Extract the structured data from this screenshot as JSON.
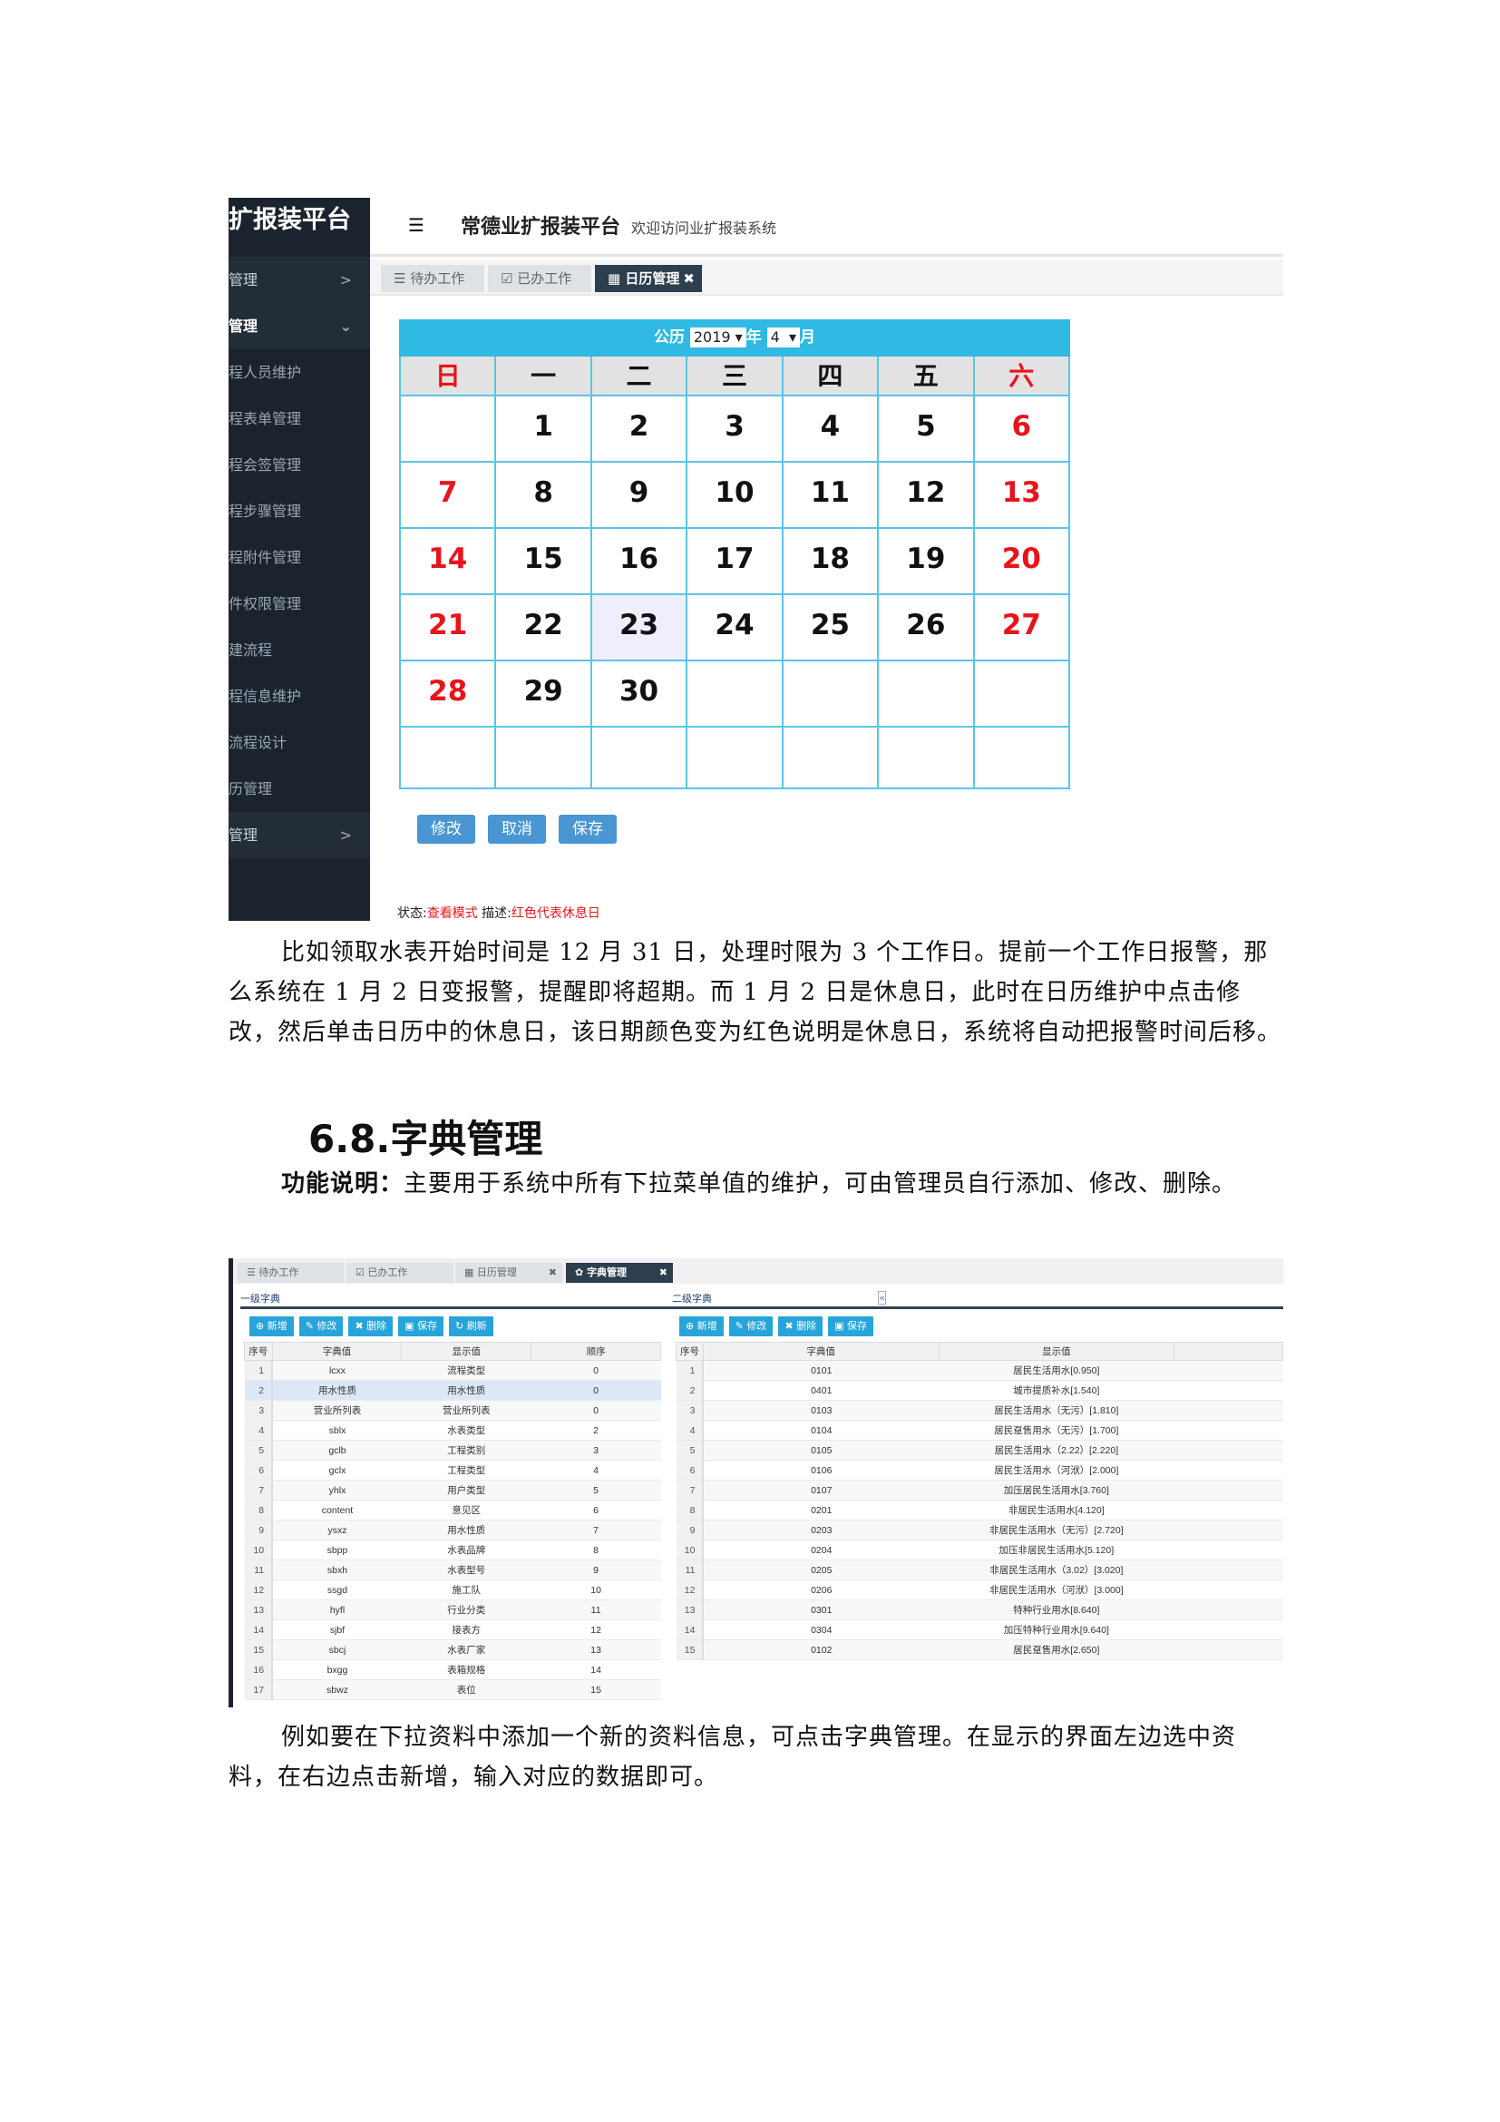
{
  "screenshot1": {
    "sidebar": {
      "title": "扩报装平台",
      "items": [
        {
          "label": "管理",
          "type": "group",
          "chevron": ">"
        },
        {
          "label": "管理",
          "type": "group active",
          "chevron": "⌄"
        },
        {
          "label": "程人员维护"
        },
        {
          "label": "程表单管理"
        },
        {
          "label": "程会签管理"
        },
        {
          "label": "程步骤管理"
        },
        {
          "label": "程附件管理"
        },
        {
          "label": "件权限管理"
        },
        {
          "label": "建流程"
        },
        {
          "label": "程信息维护"
        },
        {
          "label": "流程设计"
        },
        {
          "label": "历管理"
        },
        {
          "label": "管理",
          "type": "group",
          "chevron": ">"
        }
      ]
    },
    "header": {
      "menu_icon": "☰",
      "title": "常德业扩报装平台",
      "subtitle": "欢迎访问业扩报装系统"
    },
    "tabs": [
      {
        "icon": "☰",
        "label": "待办工作"
      },
      {
        "icon": "☑",
        "label": "已办工作"
      },
      {
        "icon": "▦",
        "label": "日历管理",
        "active": true,
        "close": "✖"
      }
    ],
    "calendar": {
      "label_calendar": "公历",
      "year": "2019",
      "year_suffix": "年",
      "month": "4",
      "month_suffix": "月",
      "weekdays": [
        "日",
        "一",
        "二",
        "三",
        "四",
        "五",
        "六"
      ],
      "weeks": [
        [
          "",
          "1",
          "2",
          "3",
          "4",
          "5",
          "6"
        ],
        [
          "7",
          "8",
          "9",
          "10",
          "11",
          "12",
          "13"
        ],
        [
          "14",
          "15",
          "16",
          "17",
          "18",
          "19",
          "20"
        ],
        [
          "21",
          "22",
          "23",
          "24",
          "25",
          "26",
          "27"
        ],
        [
          "28",
          "29",
          "30",
          "",
          "",
          "",
          ""
        ],
        [
          "",
          "",
          "",
          "",
          "",
          "",
          ""
        ]
      ],
      "selected_day": "23",
      "holiday_color": "#e8141b"
    },
    "buttons": [
      "修改",
      "取消",
      "保存"
    ],
    "status": {
      "label": "状态:",
      "value": "查看模式",
      "desc_label": "描述:",
      "desc_value": "红色代表休息日"
    }
  },
  "para1": "比如领取水表开始时间是 12 月 31 日，处理时限为 3 个工作日。提前一个工作日报警，那么系统在 1 月 2 日变报警，提醒即将超期。而 1 月 2 日是休息日，此时在日历维护中点击修改，然后单击日历中的休息日，该日期颜色变为红色说明是休息日，系统将自动把报警时间后移。",
  "heading": "6.8.字典管理",
  "para2_bold": "功能说明：",
  "para2": "主要用于系统中所有下拉菜单值的维护，可由管理员自行添加、修改、删除。",
  "screenshot2": {
    "tabs": [
      {
        "icon": "☰",
        "label": "待办工作"
      },
      {
        "icon": "☑",
        "label": "已办工作"
      },
      {
        "icon": "▦",
        "label": "日历管理",
        "close": "✖"
      },
      {
        "icon": "✿",
        "label": "字典管理",
        "active": true,
        "close": "✖"
      }
    ],
    "left": {
      "title": "一级字典",
      "collapse": "«",
      "toolbar": [
        "⊕ 新增",
        "✎ 修改",
        "✖ 删除",
        "▣ 保存",
        "↻ 刷新"
      ],
      "columns": [
        "序号",
        "字典值",
        "显示值",
        "顺序"
      ],
      "rows": [
        [
          "1",
          "lcxx",
          "流程类型",
          "0"
        ],
        [
          "2",
          "用水性质",
          "用水性质",
          "0"
        ],
        [
          "3",
          "营业所列表",
          "营业所列表",
          "0"
        ],
        [
          "4",
          "sblx",
          "水表类型",
          "2"
        ],
        [
          "5",
          "gclb",
          "工程类别",
          "3"
        ],
        [
          "6",
          "gclx",
          "工程类型",
          "4"
        ],
        [
          "7",
          "yhlx",
          "用户类型",
          "5"
        ],
        [
          "8",
          "content",
          "意见区",
          "6"
        ],
        [
          "9",
          "ysxz",
          "用水性质",
          "7"
        ],
        [
          "10",
          "sbpp",
          "水表品牌",
          "8"
        ],
        [
          "11",
          "sbxh",
          "水表型号",
          "9"
        ],
        [
          "12",
          "ssgd",
          "施工队",
          "10"
        ],
        [
          "13",
          "hyfl",
          "行业分类",
          "11"
        ],
        [
          "14",
          "sjbf",
          "接表方",
          "12"
        ],
        [
          "15",
          "sbcj",
          "水表厂家",
          "13"
        ],
        [
          "16",
          "bxgg",
          "表箱规格",
          "14"
        ],
        [
          "17",
          "sbwz",
          "表位",
          "15"
        ]
      ],
      "selected_row": "2"
    },
    "right": {
      "title": "二级字典",
      "toolbar": [
        "⊕ 新增",
        "✎ 修改",
        "✖ 删除",
        "▣ 保存"
      ],
      "columns": [
        "序号",
        "字典值",
        "显示值",
        ""
      ],
      "rows": [
        [
          "1",
          "0101",
          "居民生活用水[0.950]"
        ],
        [
          "2",
          "0401",
          "城市提质补水[1.540]"
        ],
        [
          "3",
          "0103",
          "居民生活用水（无污）[1.810]"
        ],
        [
          "4",
          "0104",
          "居民趸售用水（无污）[1.700]"
        ],
        [
          "5",
          "0105",
          "居民生活用水（2.22）[2.220]"
        ],
        [
          "6",
          "0106",
          "居民生活用水（河洑）[2.000]"
        ],
        [
          "7",
          "0107",
          "加压居民生活用水[3.760]"
        ],
        [
          "8",
          "0201",
          "非居民生活用水[4.120]"
        ],
        [
          "9",
          "0203",
          "非居民生活用水（无污）[2.720]"
        ],
        [
          "10",
          "0204",
          "加压非居民生活用水[5.120]"
        ],
        [
          "11",
          "0205",
          "非居民生活用水（3.02）[3.020]"
        ],
        [
          "12",
          "0206",
          "非居民生活用水（河洑）[3.000]"
        ],
        [
          "13",
          "0301",
          "特种行业用水[8.640]"
        ],
        [
          "14",
          "0304",
          "加压特种行业用水[9.640]"
        ],
        [
          "15",
          "0102",
          "居民趸售用水[2.650]"
        ]
      ]
    }
  },
  "para3": "例如要在下拉资料中添加一个新的资料信息，可点击字典管理。在显示的界面左边选中资料，在右边点击新增，输入对应的数据即可。"
}
